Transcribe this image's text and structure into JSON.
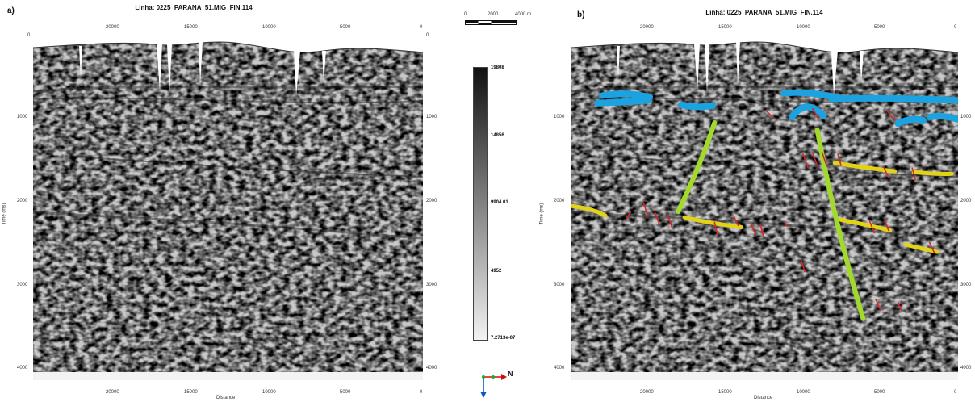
{
  "panels": [
    {
      "label": "a)",
      "title": "Linha: 0225_PARANA_51.MIG_FIN.114",
      "x_ticks": [
        "20000",
        "15000",
        "10000",
        "5000",
        "0"
      ],
      "y_ticks": [
        "0",
        "1000",
        "2000",
        "3000",
        "4000"
      ],
      "xlabel": "Distance",
      "ylabel": "Time (ms)",
      "interpreted": false
    },
    {
      "label": "b)",
      "title": "Linha: 0225_PARANA_51.MIG_FIN.114",
      "x_ticks": [
        "20000",
        "15000",
        "10000",
        "5000",
        "0"
      ],
      "y_ticks": [
        "0",
        "1000",
        "2000",
        "3000",
        "4000"
      ],
      "xlabel": "Distance",
      "ylabel": "Time (ms)",
      "interpreted": true
    }
  ],
  "scale_bar": {
    "labels": [
      "0",
      "2000",
      "4000 m"
    ]
  },
  "colorbar": {
    "ticks": [
      "19808",
      "14856",
      "9904.01",
      "4952",
      "7.2713e-07"
    ],
    "colors": {
      "high": "#111111",
      "low": "#f2f2f2"
    }
  },
  "orientation": {
    "north_label": "N",
    "colors": {
      "north": "#cc1111",
      "east": "#22aa22",
      "up": "#1155cc"
    }
  },
  "chart_data": {
    "type": "heatmap",
    "description_axis": "x = distance (m, decreasing to the right), y = two-way time (ms)",
    "xlim": [
      24500,
      0
    ],
    "ylim": [
      4200,
      0
    ],
    "interpretation_colors": {
      "shallow_horizons": "#1aa3e0",
      "deep_horizons": "#e3d317",
      "major_faults": "#a3d92c",
      "minor_faults": "#d62828"
    },
    "shallow_horizons": [
      [
        [
          22500,
          740
        ],
        [
          21000,
          690
        ],
        [
          19500,
          760
        ]
      ],
      [
        [
          22800,
          830
        ],
        [
          21200,
          820
        ],
        [
          19600,
          800
        ]
      ],
      [
        [
          17500,
          850
        ],
        [
          16500,
          900
        ],
        [
          15500,
          860
        ]
      ],
      [
        [
          11000,
          710
        ],
        [
          9500,
          680
        ],
        [
          7500,
          770
        ]
      ],
      [
        [
          10500,
          1000
        ],
        [
          9600,
          760
        ],
        [
          8500,
          990
        ]
      ],
      [
        [
          8000,
          780
        ],
        [
          4000,
          760
        ],
        [
          0,
          800
        ]
      ],
      [
        [
          3800,
          1080
        ],
        [
          3000,
          1000
        ],
        [
          2200,
          1040
        ]
      ],
      [
        [
          1800,
          1000
        ],
        [
          900,
          970
        ],
        [
          0,
          1030
        ]
      ]
    ],
    "deep_horizons": [
      [
        [
          24500,
          2080
        ],
        [
          23000,
          2120
        ],
        [
          22300,
          2200
        ]
      ],
      [
        [
          17300,
          2220
        ],
        [
          16000,
          2280
        ],
        [
          13700,
          2340
        ]
      ],
      [
        [
          7800,
          1560
        ],
        [
          5000,
          1640
        ],
        [
          4000,
          1660
        ]
      ],
      [
        [
          2800,
          1670
        ],
        [
          1200,
          1700
        ],
        [
          400,
          1690
        ]
      ],
      [
        [
          7400,
          2250
        ],
        [
          5500,
          2320
        ],
        [
          4300,
          2380
        ]
      ],
      [
        [
          3300,
          2550
        ],
        [
          2300,
          2600
        ],
        [
          1300,
          2640
        ]
      ]
    ],
    "major_faults": [
      [
        [
          15400,
          1070
        ],
        [
          16200,
          1550
        ],
        [
          17700,
          2150
        ]
      ],
      [
        [
          8900,
          1160
        ],
        [
          7800,
          2300
        ],
        [
          6000,
          3450
        ]
      ]
    ],
    "minor_faults": [
      [
        [
          20700,
          2150
        ],
        [
          21000,
          2250
        ]
      ],
      [
        [
          19900,
          2040
        ],
        [
          19600,
          2210
        ]
      ],
      [
        [
          19200,
          2140
        ],
        [
          18900,
          2300
        ]
      ],
      [
        [
          18400,
          2170
        ],
        [
          18100,
          2340
        ]
      ],
      [
        [
          15400,
          2280
        ],
        [
          15200,
          2450
        ]
      ],
      [
        [
          14200,
          2200
        ],
        [
          13900,
          2320
        ]
      ],
      [
        [
          13100,
          2290
        ],
        [
          12800,
          2430
        ]
      ],
      [
        [
          12500,
          2310
        ],
        [
          12300,
          2460
        ]
      ],
      [
        [
          11000,
          2270
        ],
        [
          10800,
          2330
        ]
      ],
      [
        [
          9800,
          1450
        ],
        [
          9500,
          1610
        ]
      ],
      [
        [
          9200,
          1440
        ],
        [
          8900,
          1590
        ]
      ],
      [
        [
          8600,
          1430
        ],
        [
          8300,
          1600
        ]
      ],
      [
        [
          7600,
          1450
        ],
        [
          7400,
          1590
        ]
      ],
      [
        [
          4700,
          1610
        ],
        [
          4400,
          1730
        ]
      ],
      [
        [
          2900,
          1620
        ],
        [
          2700,
          1760
        ]
      ],
      [
        [
          5600,
          2260
        ],
        [
          5300,
          2410
        ]
      ],
      [
        [
          4600,
          2270
        ],
        [
          4400,
          2380
        ]
      ],
      [
        [
          1800,
          2530
        ],
        [
          1500,
          2650
        ]
      ],
      [
        [
          9900,
          2750
        ],
        [
          9700,
          2880
        ]
      ],
      [
        [
          5200,
          3220
        ],
        [
          4900,
          3350
        ]
      ],
      [
        [
          3800,
          3250
        ],
        [
          3600,
          3350
        ]
      ],
      [
        [
          9200,
          900
        ],
        [
          8800,
          1020
        ]
      ],
      [
        [
          4500,
          920
        ],
        [
          4000,
          1040
        ]
      ],
      [
        [
          12100,
          930
        ],
        [
          11700,
          1010
        ]
      ]
    ]
  }
}
